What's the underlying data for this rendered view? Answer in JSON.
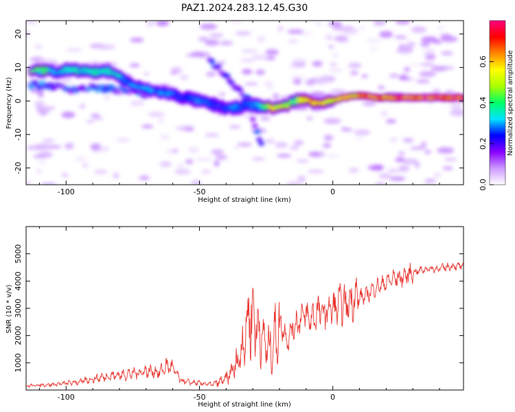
{
  "figure_title": "PAZ1.2024.283.12.45.G30",
  "chart_data": [
    {
      "type": "heatmap",
      "xlabel": "Height of straight line (km)",
      "ylabel": "Frequency (Hz)",
      "xlim": [
        -115,
        49
      ],
      "ylim": [
        -25,
        24
      ],
      "xticks": [
        -100,
        -50,
        0
      ],
      "yticks": [
        -20,
        -10,
        0,
        10,
        20
      ],
      "colorbar": {
        "label": "Normalized spectral amplitude",
        "range": [
          0,
          0.8
        ],
        "ticks": [
          0.0,
          0.2,
          0.4,
          0.6
        ],
        "colors": [
          "#ffffff",
          "#cc99ff",
          "#8800ff",
          "#0000ff",
          "#00e5ff",
          "#00ff66",
          "#aaff00",
          "#ffff00",
          "#ff8800",
          "#ff0000",
          "#ff0080"
        ]
      },
      "ridge": {
        "x": [
          -113,
          -108,
          -103,
          -98,
          -93,
          -88,
          -83,
          -78,
          -73,
          -68,
          -63,
          -58,
          -53,
          -48,
          -43,
          -38,
          -33,
          -28,
          -23,
          -18,
          -13,
          -8,
          -3,
          2,
          7,
          12,
          17,
          22,
          27,
          32,
          37,
          42,
          47
        ],
        "freq": [
          9.5,
          9.0,
          8.5,
          9.5,
          9.0,
          8.5,
          9.0,
          6.0,
          4.0,
          3.0,
          2.5,
          1.5,
          0.5,
          -0.5,
          -1.5,
          -2.5,
          -1.0,
          -1.5,
          -2.0,
          -1.5,
          0.5,
          0.0,
          -0.5,
          0.5,
          1.5,
          1.5,
          1.0,
          1.0,
          1.0,
          1.0,
          1.0,
          1.0,
          1.0
        ],
        "amplitude": [
          0.45,
          0.4,
          0.35,
          0.4,
          0.35,
          0.35,
          0.4,
          0.3,
          0.3,
          0.3,
          0.3,
          0.25,
          0.25,
          0.3,
          0.25,
          0.3,
          0.25,
          0.3,
          0.6,
          0.45,
          0.5,
          0.65,
          0.55,
          0.6,
          0.6,
          0.7,
          0.7,
          0.7,
          0.75,
          0.7,
          0.75,
          0.8,
          0.8
        ]
      },
      "secondary_ridges": [
        {
          "x": [
            -113,
            -105,
            -98,
            -90,
            -83,
            -76,
            -70
          ],
          "freq": [
            5.0,
            4.5,
            3.5,
            4.0,
            3.5,
            3.0,
            2.0
          ]
        },
        {
          "x": [
            -46,
            -43,
            -40,
            -37,
            -34,
            -31
          ],
          "freq": [
            12.0,
            10.0,
            7.5,
            5.0,
            2.5,
            0.0
          ]
        },
        {
          "x": [
            -30,
            -28,
            -26
          ],
          "freq": [
            -5.0,
            -10.0,
            -15.0
          ]
        }
      ]
    },
    {
      "type": "line",
      "xlabel": "Height of straight line (km)",
      "ylabel": "SNR (10 * v/v)",
      "xlim": [
        -115,
        49
      ],
      "ylim": [
        0,
        6000
      ],
      "xticks": [
        -100,
        -50,
        0
      ],
      "yticks": [
        1000,
        2000,
        3000,
        4000,
        5000
      ],
      "series": [
        {
          "color": "#e8302a",
          "x": [
            -115,
            -110,
            -105,
            -100,
            -95,
            -90,
            -85,
            -80,
            -75,
            -70,
            -65,
            -62,
            -60,
            -57,
            -55,
            -50,
            -45,
            -40,
            -37,
            -35,
            -33,
            -31,
            -29,
            -27,
            -25,
            -23,
            -21,
            -19,
            -17,
            -15,
            -13,
            -11,
            -9,
            -7,
            -5,
            -3,
            -1,
            1,
            3,
            5,
            7,
            9,
            11,
            13,
            15,
            17,
            19,
            21,
            23,
            25,
            27,
            30,
            33,
            36,
            39,
            42,
            45,
            48
          ],
          "y": [
            150,
            180,
            200,
            250,
            300,
            400,
            500,
            550,
            600,
            700,
            650,
            900,
            800,
            350,
            300,
            250,
            200,
            400,
            800,
            1200,
            2000,
            2900,
            2500,
            2000,
            1600,
            1500,
            2200,
            2400,
            1800,
            2300,
            2500,
            2800,
            2600,
            2700,
            2900,
            2800,
            3000,
            3000,
            3200,
            3100,
            3300,
            3500,
            3400,
            3500,
            3700,
            3800,
            3900,
            4000,
            4100,
            4100,
            4200,
            4300,
            4400,
            4450,
            4450,
            4500,
            4550,
            4550
          ]
        }
      ]
    }
  ]
}
